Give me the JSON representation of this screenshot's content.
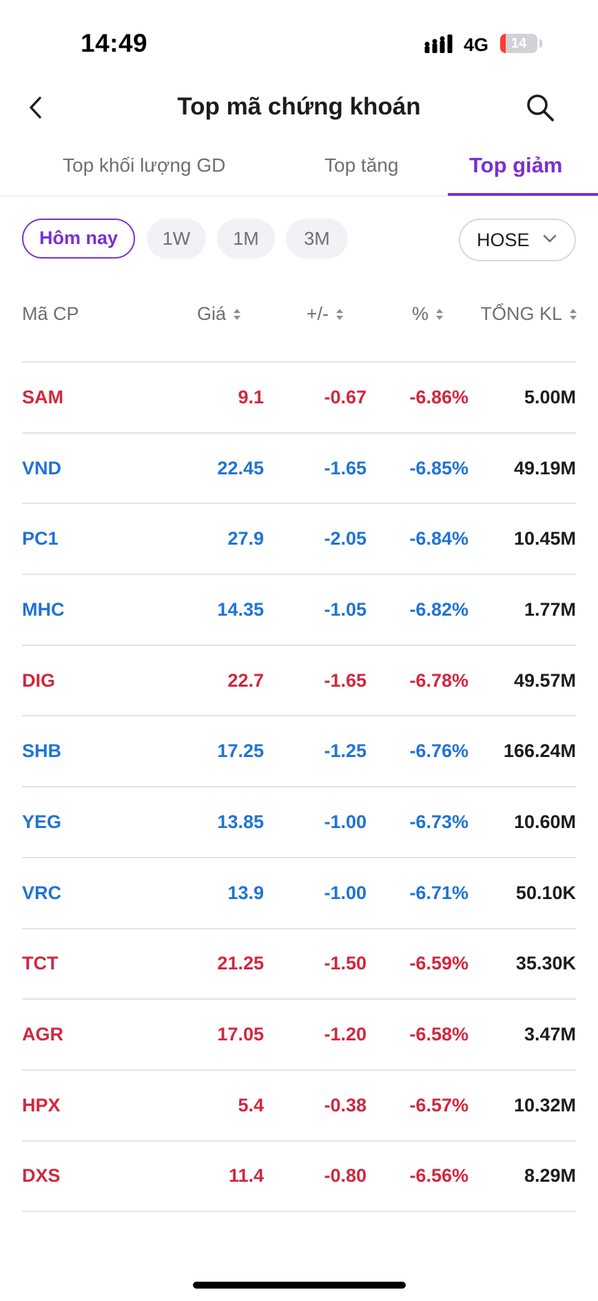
{
  "status_bar": {
    "time": "14:49",
    "network": "4G",
    "battery": "14",
    "battery_level": 0.14
  },
  "header": {
    "title": "Top mã chứng khoán",
    "back_icon": "chevron-left-icon",
    "search_icon": "search-icon"
  },
  "tabs": [
    {
      "label": "Top khối lượng GD",
      "active": false
    },
    {
      "label": "Top tăng",
      "active": false
    },
    {
      "label": "Top giảm",
      "active": true
    }
  ],
  "filters": {
    "periods": [
      {
        "label": "Hôm nay",
        "active": true
      },
      {
        "label": "1W",
        "active": false
      },
      {
        "label": "1M",
        "active": false
      },
      {
        "label": "3M",
        "active": false
      }
    ],
    "exchange": "HOSE"
  },
  "columns": {
    "symbol": "Mã CP",
    "price": "Giá",
    "change": "+/-",
    "percent": "%",
    "volume": "TỔNG KL"
  },
  "colors": {
    "accent": "#7a2fd4",
    "red": "#d2273d",
    "blue": "#1f73d6"
  },
  "rows": [
    {
      "symbol": "SAM",
      "price": "9.1",
      "change": "-0.67",
      "percent": "-6.86%",
      "volume": "5.00M",
      "color": "red"
    },
    {
      "symbol": "VND",
      "price": "22.45",
      "change": "-1.65",
      "percent": "-6.85%",
      "volume": "49.19M",
      "color": "blue"
    },
    {
      "symbol": "PC1",
      "price": "27.9",
      "change": "-2.05",
      "percent": "-6.84%",
      "volume": "10.45M",
      "color": "blue"
    },
    {
      "symbol": "MHC",
      "price": "14.35",
      "change": "-1.05",
      "percent": "-6.82%",
      "volume": "1.77M",
      "color": "blue"
    },
    {
      "symbol": "DIG",
      "price": "22.7",
      "change": "-1.65",
      "percent": "-6.78%",
      "volume": "49.57M",
      "color": "red"
    },
    {
      "symbol": "SHB",
      "price": "17.25",
      "change": "-1.25",
      "percent": "-6.76%",
      "volume": "166.24M",
      "color": "blue"
    },
    {
      "symbol": "YEG",
      "price": "13.85",
      "change": "-1.00",
      "percent": "-6.73%",
      "volume": "10.60M",
      "color": "blue"
    },
    {
      "symbol": "VRC",
      "price": "13.9",
      "change": "-1.00",
      "percent": "-6.71%",
      "volume": "50.10K",
      "color": "blue"
    },
    {
      "symbol": "TCT",
      "price": "21.25",
      "change": "-1.50",
      "percent": "-6.59%",
      "volume": "35.30K",
      "color": "red"
    },
    {
      "symbol": "AGR",
      "price": "17.05",
      "change": "-1.20",
      "percent": "-6.58%",
      "volume": "3.47M",
      "color": "red"
    },
    {
      "symbol": "HPX",
      "price": "5.4",
      "change": "-0.38",
      "percent": "-6.57%",
      "volume": "10.32M",
      "color": "red"
    },
    {
      "symbol": "DXS",
      "price": "11.4",
      "change": "-0.80",
      "percent": "-6.56%",
      "volume": "8.29M",
      "color": "red"
    }
  ]
}
